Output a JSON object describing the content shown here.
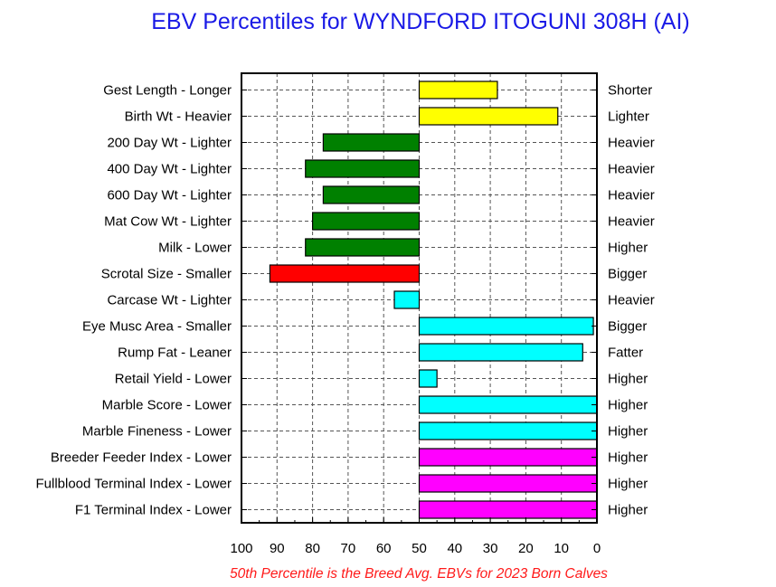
{
  "chart_data": {
    "type": "bar",
    "title": "EBV Percentiles for WYNDFORD ITOGUNI 308H (AI)",
    "footnote": "50th Percentile is the Breed Avg. EBVs for 2023 Born Calves",
    "xlim": [
      100,
      0
    ],
    "x_ticks": [
      "100",
      "90",
      "80",
      "70",
      "60",
      "50",
      "40",
      "30",
      "20",
      "10",
      "0"
    ],
    "baseline": 50,
    "grid": true,
    "colors": {
      "yellow": "#ffff00",
      "green": "#008000",
      "red": "#ff0000",
      "cyan": "#00ffff",
      "magenta": "#ff00ff"
    },
    "traits": [
      {
        "left_label": "Gest Length - Longer",
        "right_label": "Shorter",
        "percentile": 28,
        "color": "yellow"
      },
      {
        "left_label": "Birth Wt - Heavier",
        "right_label": "Lighter",
        "percentile": 11,
        "color": "yellow"
      },
      {
        "left_label": "200 Day Wt - Lighter",
        "right_label": "Heavier",
        "percentile": 77,
        "color": "green"
      },
      {
        "left_label": "400 Day Wt - Lighter",
        "right_label": "Heavier",
        "percentile": 82,
        "color": "green"
      },
      {
        "left_label": "600 Day Wt - Lighter",
        "right_label": "Heavier",
        "percentile": 77,
        "color": "green"
      },
      {
        "left_label": "Mat Cow Wt - Lighter",
        "right_label": "Heavier",
        "percentile": 80,
        "color": "green"
      },
      {
        "left_label": "Milk - Lower",
        "right_label": "Higher",
        "percentile": 82,
        "color": "green"
      },
      {
        "left_label": "Scrotal Size - Smaller",
        "right_label": "Bigger",
        "percentile": 92,
        "color": "red"
      },
      {
        "left_label": "Carcase Wt - Lighter",
        "right_label": "Heavier",
        "percentile": 57,
        "color": "cyan"
      },
      {
        "left_label": "Eye Musc Area - Smaller",
        "right_label": "Bigger",
        "percentile": 1,
        "color": "cyan"
      },
      {
        "left_label": "Rump Fat - Leaner",
        "right_label": "Fatter",
        "percentile": 4,
        "color": "cyan"
      },
      {
        "left_label": "Retail Yield - Lower",
        "right_label": "Higher",
        "percentile": 45,
        "color": "cyan"
      },
      {
        "left_label": "Marble Score - Lower",
        "right_label": "Higher",
        "percentile": 0,
        "color": "cyan"
      },
      {
        "left_label": "Marble Fineness - Lower",
        "right_label": "Higher",
        "percentile": 0,
        "color": "cyan"
      },
      {
        "left_label": "Breeder Feeder Index - Lower",
        "right_label": "Higher",
        "percentile": 0,
        "color": "magenta"
      },
      {
        "left_label": "Fullblood Terminal Index - Lower",
        "right_label": "Higher",
        "percentile": 0,
        "color": "magenta"
      },
      {
        "left_label": "F1 Terminal Index - Lower",
        "right_label": "Higher",
        "percentile": 0,
        "color": "magenta"
      }
    ]
  }
}
